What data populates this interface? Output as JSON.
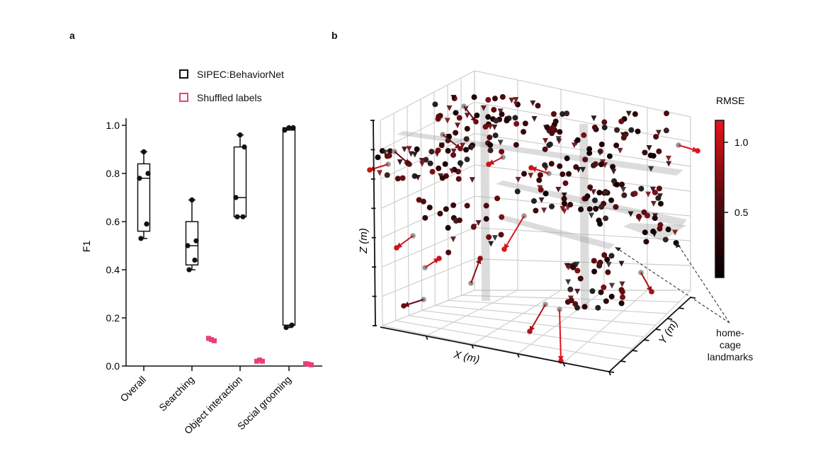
{
  "panels": {
    "a": "a",
    "b": "b"
  },
  "chart_data": [
    {
      "type": "box",
      "panel": "a",
      "title": "",
      "xlabel": "",
      "ylabel": "F1",
      "ylim": [
        0,
        1.0
      ],
      "yticks": [
        "0.0",
        "0.2",
        "0.4",
        "0.6",
        "0.8",
        "1.0"
      ],
      "categories": [
        "Overall",
        "Searching",
        "Object interaction",
        "Social grooming"
      ],
      "legend": {
        "placement": "top-right",
        "entries": [
          {
            "label": "SIPEC:BehaviorNet",
            "color": "#111111"
          },
          {
            "label": "Shuffled labels",
            "color": "#e8417a"
          }
        ]
      },
      "series": [
        {
          "name": "SIPEC:BehaviorNet",
          "color": "#111111",
          "boxes": [
            {
              "category": "Overall",
              "whisker_low": 0.53,
              "q1": 0.56,
              "median": 0.78,
              "q3": 0.84,
              "whisker_high": 0.89,
              "points": [
                0.53,
                0.59,
                0.78,
                0.8,
                0.89
              ]
            },
            {
              "category": "Searching",
              "whisker_low": 0.4,
              "q1": 0.42,
              "median": 0.5,
              "q3": 0.6,
              "whisker_high": 0.69,
              "points": [
                0.4,
                0.44,
                0.5,
                0.52,
                0.69
              ]
            },
            {
              "category": "Object interaction",
              "whisker_low": 0.62,
              "q1": 0.62,
              "median": 0.7,
              "q3": 0.91,
              "whisker_high": 0.96,
              "points": [
                0.62,
                0.62,
                0.7,
                0.91,
                0.96
              ]
            },
            {
              "category": "Social grooming",
              "whisker_low": 0.16,
              "q1": 0.17,
              "median": 0.98,
              "q3": 0.99,
              "whisker_high": 0.99,
              "points": [
                0.16,
                0.17,
                0.98,
                0.99,
                0.99
              ]
            }
          ]
        },
        {
          "name": "Shuffled labels",
          "color": "#e8417a",
          "values": [
            {
              "category": "Searching",
              "points": [
                0.115,
                0.11,
                0.105
              ]
            },
            {
              "category": "Object interaction",
              "points": [
                0.02,
                0.025,
                0.02
              ]
            },
            {
              "category": "Social grooming",
              "points": [
                0.01,
                0.008,
                0.005
              ]
            }
          ]
        }
      ]
    },
    {
      "type": "scatter",
      "panel": "b",
      "subtype": "3d-scatter-with-error-arrows",
      "xlabel": "X (m)",
      "ylabel": "Y (m)",
      "zlabel": "Z (m)",
      "colorbar": {
        "label": "RMSE",
        "ticks": [
          "1.0",
          "0.5"
        ],
        "range": [
          0.0,
          1.15
        ],
        "colors": [
          "#000000",
          "#e8141c"
        ]
      },
      "annotation": "home-cage landmarks"
    }
  ]
}
